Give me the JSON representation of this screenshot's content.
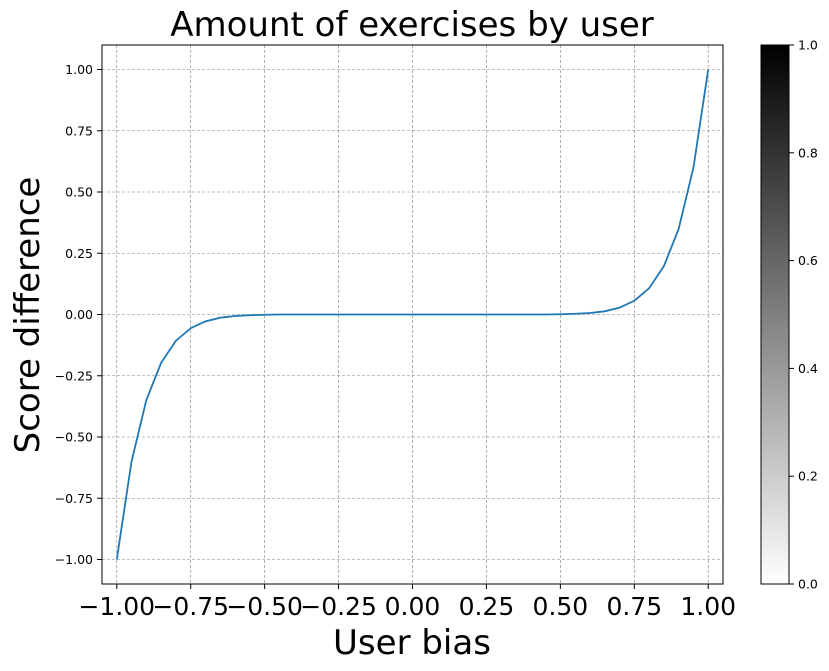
{
  "chart_data": {
    "type": "line",
    "title": "Amount of exercises by user",
    "xlabel": "User bias",
    "ylabel": "Score difference",
    "xlim": [
      -1.05,
      1.05
    ],
    "ylim": [
      -1.1,
      1.1
    ],
    "grid": true,
    "x_ticks": [
      -1.0,
      -0.75,
      -0.5,
      -0.25,
      0.0,
      0.25,
      0.5,
      0.75,
      1.0
    ],
    "x_tick_labels": [
      "−1.00",
      "−0.75",
      "−0.50",
      "−0.25",
      "0.00",
      "0.25",
      "0.50",
      "0.75",
      "1.00"
    ],
    "y_ticks": [
      -1.0,
      -0.75,
      -0.5,
      -0.25,
      0.0,
      0.25,
      0.5,
      0.75,
      1.0
    ],
    "y_tick_labels": [
      "−1.00",
      "−0.75",
      "−0.50",
      "−0.25",
      "0.00",
      "0.25",
      "0.50",
      "0.75",
      "1.00"
    ],
    "series": [
      {
        "color": "#1f77b4",
        "x": [
          -1.0,
          -0.95,
          -0.9,
          -0.85,
          -0.8,
          -0.75,
          -0.7,
          -0.65,
          -0.6,
          -0.55,
          -0.5,
          -0.45,
          -0.4,
          -0.35,
          -0.3,
          -0.25,
          -0.2,
          -0.15,
          -0.1,
          -0.05,
          0.0,
          0.05,
          0.1,
          0.15,
          0.2,
          0.25,
          0.3,
          0.35,
          0.4,
          0.45,
          0.5,
          0.55,
          0.6,
          0.65,
          0.7,
          0.75,
          0.8,
          0.85,
          0.9,
          0.95,
          1.0
        ],
        "y": [
          -1.0,
          -0.599,
          -0.349,
          -0.197,
          -0.107,
          -0.056,
          -0.028,
          -0.013,
          -0.006,
          -0.003,
          -0.001,
          0.0,
          0.0,
          0.0,
          0.0,
          0.0,
          0.0,
          0.0,
          0.0,
          0.0,
          0.0,
          0.0,
          0.0,
          0.0,
          0.0,
          0.0,
          0.0,
          0.0,
          0.0,
          0.0,
          0.001,
          0.003,
          0.006,
          0.013,
          0.028,
          0.056,
          0.107,
          0.197,
          0.349,
          0.599,
          1.0
        ]
      }
    ],
    "colorbar": {
      "colormap": "Greys",
      "range": [
        0.0,
        1.0
      ],
      "ticks": [
        0.0,
        0.2,
        0.4,
        0.6,
        0.8,
        1.0
      ],
      "tick_labels": [
        "0.0",
        "0.2",
        "0.4",
        "0.6",
        "0.8",
        "1.0"
      ],
      "color_low": "#ffffff",
      "color_high": "#000000"
    }
  }
}
